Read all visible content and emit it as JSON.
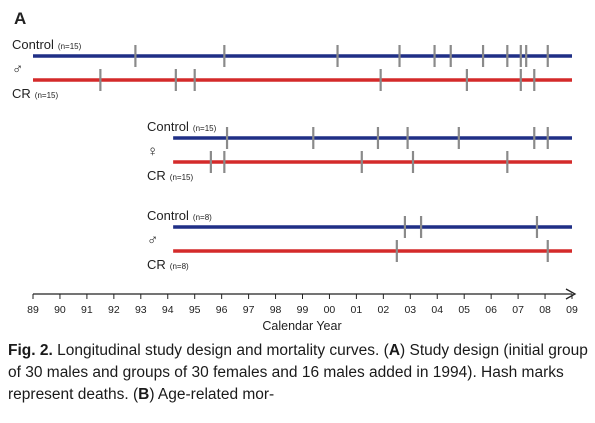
{
  "panel_label": "A",
  "axis": {
    "title": "Calendar Year",
    "ticks": [
      "89",
      "90",
      "91",
      "92",
      "93",
      "94",
      "95",
      "96",
      "97",
      "98",
      "99",
      "00",
      "01",
      "02",
      "03",
      "04",
      "05",
      "06",
      "07",
      "08",
      "09"
    ]
  },
  "colors": {
    "control": "#1f2f86",
    "cr": "#d42a2a",
    "hash": "#8a8a8a",
    "axis": "#222222"
  },
  "cohorts": [
    {
      "sex_symbol": "♂",
      "start_year": 1989,
      "control_label": "Control",
      "control_n": "(n=15)",
      "cr_label": "CR",
      "cr_n": "(n=15)",
      "control_deaths": [
        1992.8,
        1996.1,
        2000.3,
        2002.6,
        2003.9,
        2004.5,
        2005.7,
        2006.6,
        2007.1,
        2007.3,
        2008.1
      ],
      "cr_deaths": [
        1991.5,
        1994.3,
        1995.0,
        2001.9,
        2005.1,
        2007.1,
        2007.6
      ]
    },
    {
      "sex_symbol": "♀",
      "start_year": 1994.2,
      "control_label": "Control",
      "control_n": "(n=15)",
      "cr_label": "CR",
      "cr_n": "(n=15)",
      "control_deaths": [
        1996.2,
        1999.4,
        2001.8,
        2002.9,
        2004.8,
        2007.6,
        2008.1
      ],
      "cr_deaths": [
        1995.6,
        1996.1,
        2001.2,
        2003.1,
        2006.6
      ]
    },
    {
      "sex_symbol": "♂",
      "start_year": 1994.2,
      "control_label": "Control",
      "control_n": "(n=8)",
      "cr_label": "CR",
      "cr_n": "(n=8)",
      "control_deaths": [
        2002.8,
        2003.4,
        2007.7
      ],
      "cr_deaths": [
        2002.5,
        2008.1
      ]
    }
  ],
  "caption": {
    "fig_label": "Fig. 2.",
    "text1": " Longitudinal study design and mortality curves. (",
    "bold_a": "A",
    "text2": ") Study design (initial group of 30 males and groups of 30 females and 16 males added in 1994). Hash marks represent deaths. (",
    "bold_b": "B",
    "text3": ") Age-related mor-"
  },
  "chart_data": {
    "type": "timeline",
    "xlabel": "Calendar Year",
    "xlim": [
      1989,
      2009
    ],
    "series": [
      {
        "name": "Control (n=15)",
        "start": 1989,
        "end": 2009,
        "deaths": [
          1992.8,
          1996.1,
          2000.3,
          2002.6,
          2003.9,
          2004.5,
          2005.7,
          2006.6,
          2007.1,
          2007.3,
          2008.1
        ]
      },
      {
        "name": "CR (n=15)",
        "start": 1989,
        "end": 2009,
        "deaths": [
          1991.5,
          1994.3,
          1995.0,
          2001.9,
          2005.1,
          2007.1,
          2007.6
        ]
      },
      {
        "name": "Control (n=15)",
        "start": 1994.2,
        "end": 2009,
        "deaths": [
          1996.2,
          1999.4,
          2001.8,
          2002.9,
          2004.8,
          2007.6,
          2008.1
        ]
      },
      {
        "name": "CR (n=15)",
        "start": 1994.2,
        "end": 2009,
        "deaths": [
          1995.6,
          1996.1,
          2001.2,
          2003.1,
          2006.6
        ]
      },
      {
        "name": "Control (n=8)",
        "start": 1994.2,
        "end": 2009,
        "deaths": [
          2002.8,
          2003.4,
          2007.7
        ]
      },
      {
        "name": "CR (n=8)",
        "start": 1994.2,
        "end": 2009,
        "deaths": [
          2002.5,
          2008.1
        ]
      }
    ]
  }
}
